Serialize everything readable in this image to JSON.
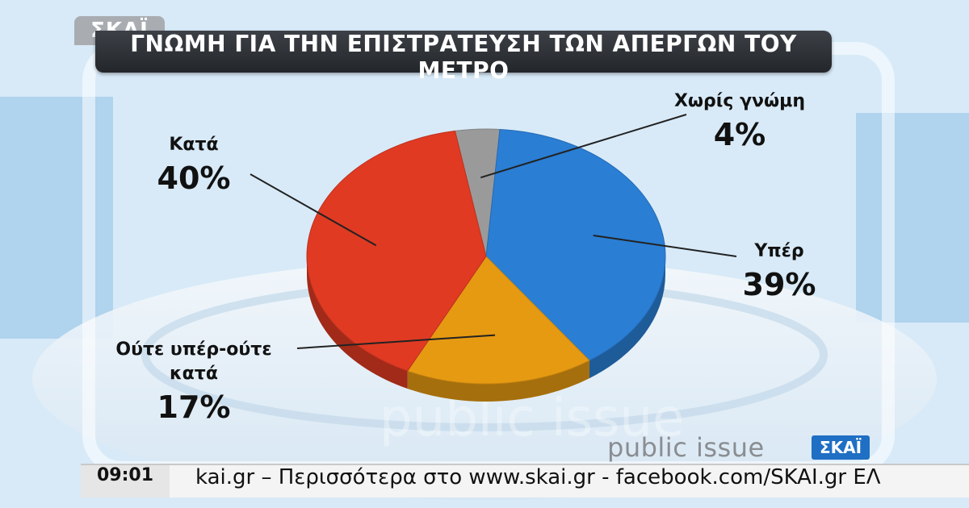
{
  "logo": {
    "text": "ΣΚΑΪ"
  },
  "chart_data": {
    "type": "pie",
    "title": "ΓΝΩΜΗ ΓΙΑ ΤΗΝ ΕΠΙΣΤΡΑΤΕΥΣΗ ΤΩΝ ΑΠΕΡΓΩΝ ΤΟΥ ΜΕΤΡΟ",
    "slices": [
      {
        "label": "Χωρίς γνώμη",
        "value": 4,
        "display": "4%",
        "color": "#9a9a9a"
      },
      {
        "label": "Υπέρ",
        "value": 39,
        "display": "39%",
        "color": "#2a7ed4"
      },
      {
        "label": "Ούτε υπέρ-ούτε κατά",
        "value": 17,
        "display": "17%",
        "color": "#e69a12"
      },
      {
        "label": "Κατά",
        "value": 40,
        "display": "40%",
        "color": "#e03a23"
      }
    ]
  },
  "branding": {
    "source": "public issue",
    "channel": "ΣΚΑΪ"
  },
  "ticker": {
    "time": "09:01",
    "text": "kai.gr – Περισσότερα στο www.skai.gr - facebook.com/SKAI.gr ΕΛ"
  }
}
